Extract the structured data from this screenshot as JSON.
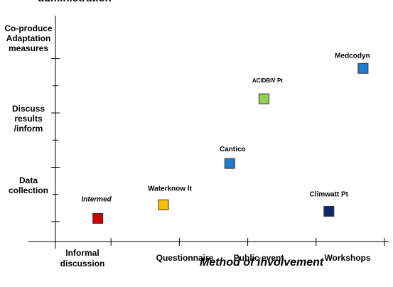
{
  "chart_data": {
    "type": "scatter",
    "title": "administration",
    "xlabel": "Method of involvement",
    "ylabel": "",
    "x_categories": [
      "Informal discussion",
      "Questionnaire",
      "Public event",
      "Workshops"
    ],
    "y_categories": [
      "Data collection",
      "Discuss results /inform",
      "Co-produce Adaptation measures"
    ],
    "xlim": [
      0,
      5
    ],
    "ylim": [
      0,
      3
    ],
    "points": [
      {
        "label": "Intermed",
        "x": 0.62,
        "y": 0.06,
        "color": "#cc0000"
      },
      {
        "label": "Waterknow lt",
        "x": 1.58,
        "y": 0.31,
        "color": "#ffc000"
      },
      {
        "label": "Cantico",
        "x": 2.55,
        "y": 1.07,
        "color": "#1f7cd1"
      },
      {
        "label": "ACIDBIV Pt",
        "x": 3.05,
        "y": 2.26,
        "color": "#92d050"
      },
      {
        "label": "Climwatt Pt",
        "x": 4.0,
        "y": 0.19,
        "color": "#0d2a6b"
      },
      {
        "label": "Medcodyn",
        "x": 4.5,
        "y": 2.82,
        "color": "#1f7cd1"
      }
    ]
  }
}
